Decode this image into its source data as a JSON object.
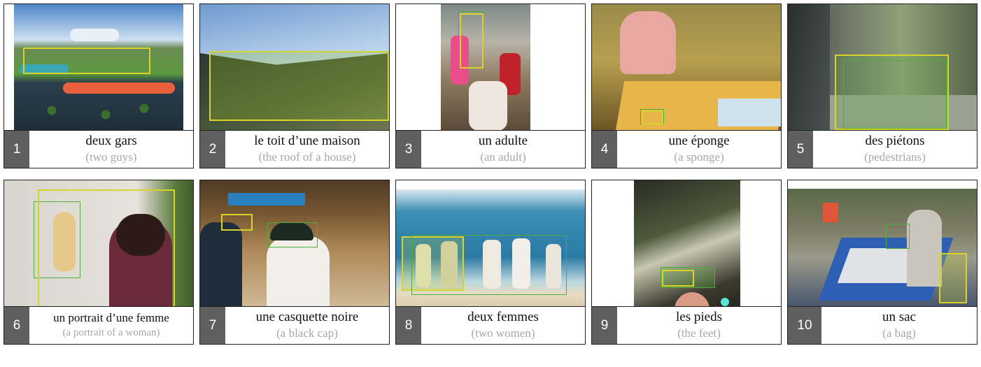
{
  "cards": [
    {
      "num": "1",
      "fr": "deux gars",
      "en": "(two guys)"
    },
    {
      "num": "2",
      "fr": "le toit d’une maison",
      "en": "(the roof of a house)"
    },
    {
      "num": "3",
      "fr": "un adulte",
      "en": "(an adult)"
    },
    {
      "num": "4",
      "fr": "une éponge",
      "en": "(a sponge)"
    },
    {
      "num": "5",
      "fr": "des piétons",
      "en": "(pedestrians)"
    },
    {
      "num": "6",
      "fr": "un portrait d’une femme",
      "en": "(a portrait of a woman)"
    },
    {
      "num": "7",
      "fr": "une casquette noire",
      "en": "(a black cap)"
    },
    {
      "num": "8",
      "fr": "deux femmes",
      "en": "(two women)"
    },
    {
      "num": "9",
      "fr": "les pieds",
      "en": "(the feet)"
    },
    {
      "num": "10",
      "fr": "un sac",
      "en": "(a bag)"
    }
  ],
  "colors": {
    "yellow_box": "#d8d32a",
    "green_box": "#4fae3b",
    "number_tab": "#5f5f5f"
  }
}
